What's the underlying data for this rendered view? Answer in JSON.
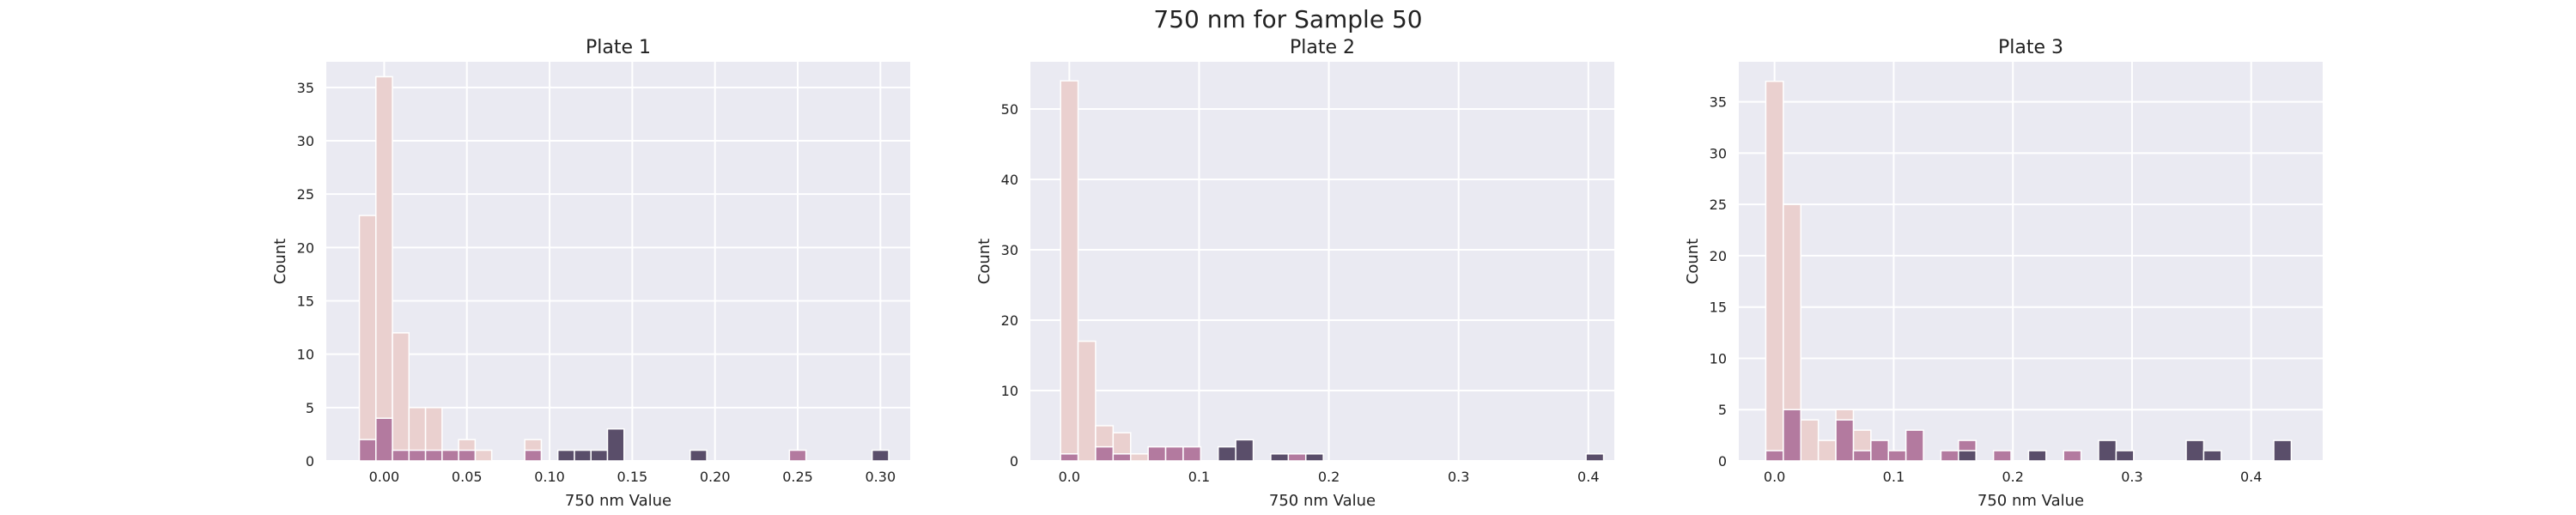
{
  "figure": {
    "title": "750 nm for Sample 50"
  },
  "colors": {
    "background": "#eaeaf2",
    "hue_light": "#ead0cf",
    "hue_mid": "#b37a9f",
    "hue_dark": "#5a4e6a"
  },
  "chart_data": [
    {
      "type": "bar",
      "title": "Plate 1",
      "xlabel": "750 nm Value",
      "ylabel": "Count",
      "xlim": [
        -0.035,
        0.318
      ],
      "ylim": [
        0,
        37.4
      ],
      "xticks": [
        0.0,
        0.05,
        0.1,
        0.15,
        0.2,
        0.25,
        0.3
      ],
      "xtick_labels": [
        "0.00",
        "0.05",
        "0.10",
        "0.15",
        "0.20",
        "0.25",
        "0.30"
      ],
      "yticks": [
        0,
        5,
        10,
        15,
        20,
        25,
        30,
        35
      ],
      "bin_width": 0.01,
      "grid": true,
      "series": [
        {
          "color": "#ead0cf",
          "x": [
            -0.01,
            0.0,
            0.01,
            0.02,
            0.03,
            0.05,
            0.06,
            0.09
          ],
          "values": [
            23,
            36,
            12,
            5,
            5,
            2,
            1,
            2
          ]
        },
        {
          "color": "#b37a9f",
          "x": [
            -0.01,
            0.0,
            0.01,
            0.02,
            0.03,
            0.04,
            0.05,
            0.09,
            0.25
          ],
          "values": [
            2,
            4,
            1,
            1,
            1,
            1,
            1,
            1,
            1
          ]
        },
        {
          "color": "#5a4e6a",
          "x": [
            0.11,
            0.12,
            0.13,
            0.14,
            0.19,
            0.3
          ],
          "values": [
            1,
            1,
            1,
            3,
            1,
            1
          ]
        }
      ]
    },
    {
      "type": "bar",
      "title": "Plate 2",
      "xlabel": "750 nm Value",
      "ylabel": "Count",
      "xlim": [
        -0.03,
        0.42
      ],
      "ylim": [
        0,
        56.7
      ],
      "xticks": [
        0.0,
        0.1,
        0.2,
        0.3,
        0.4
      ],
      "xtick_labels": [
        "0.0",
        "0.1",
        "0.2",
        "0.3",
        "0.4"
      ],
      "yticks": [
        0,
        10,
        20,
        30,
        40,
        50
      ],
      "bin_width": 0.0135,
      "grid": true,
      "series": [
        {
          "color": "#ead0cf",
          "x": [
            0.0,
            0.0135,
            0.027,
            0.0405,
            0.054
          ],
          "values": [
            54,
            17,
            5,
            4,
            1
          ]
        },
        {
          "color": "#b37a9f",
          "x": [
            0.0,
            0.027,
            0.0405,
            0.0675,
            0.081,
            0.0945,
            0.1755,
            0.189
          ],
          "values": [
            1,
            2,
            1,
            2,
            2,
            2,
            1,
            1
          ]
        },
        {
          "color": "#5a4e6a",
          "x": [
            0.1215,
            0.135,
            0.162,
            0.189,
            0.405
          ],
          "values": [
            2,
            3,
            1,
            1,
            1
          ]
        }
      ]
    },
    {
      "type": "bar",
      "title": "Plate 3",
      "xlabel": "750 nm Value",
      "ylabel": "Count",
      "xlim": [
        -0.03,
        0.46
      ],
      "ylim": [
        0,
        38.9
      ],
      "xticks": [
        0.0,
        0.1,
        0.2,
        0.3,
        0.4
      ],
      "xtick_labels": [
        "0.0",
        "0.1",
        "0.2",
        "0.3",
        "0.4"
      ],
      "yticks": [
        0,
        5,
        10,
        15,
        20,
        25,
        30,
        35
      ],
      "bin_width": 0.0147,
      "grid": true,
      "series": [
        {
          "color": "#ead0cf",
          "x": [
            0.0,
            0.0147,
            0.0294,
            0.0441,
            0.0588,
            0.0735,
            0.0882
          ],
          "values": [
            37,
            25,
            4,
            2,
            5,
            3,
            2
          ]
        },
        {
          "color": "#b37a9f",
          "x": [
            0.0,
            0.0147,
            0.0588,
            0.0735,
            0.0882,
            0.1029,
            0.1176,
            0.147,
            0.1617,
            0.1911,
            0.2499
          ],
          "values": [
            1,
            5,
            4,
            1,
            2,
            1,
            3,
            1,
            2,
            1,
            1
          ]
        },
        {
          "color": "#5a4e6a",
          "x": [
            0.1617,
            0.2205,
            0.2793,
            0.294,
            0.3528,
            0.3675,
            0.4263
          ],
          "values": [
            1,
            1,
            2,
            1,
            2,
            1,
            2
          ]
        }
      ]
    }
  ]
}
